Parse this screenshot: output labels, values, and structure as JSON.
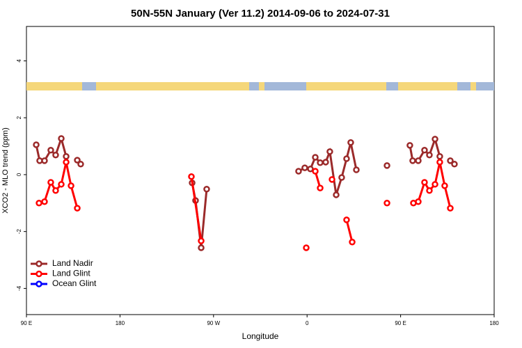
{
  "chart_data": {
    "type": "line",
    "title": "50N-55N January (Ver 11.2)   2014-09-06 to 2024-07-31",
    "x_label": "Longitude",
    "y_label": "XCO2 - MLO trend (ppm)",
    "xlim": [
      90,
      540
    ],
    "xticks": [
      {
        "value": 90,
        "label": "90 E"
      },
      180,
      {
        "value": 270,
        "label": "90 W"
      },
      {
        "value": 360,
        "label": "0"
      },
      {
        "value": 450,
        "label": "90 E"
      },
      {
        "value": 540,
        "label": "180"
      }
    ],
    "ylim": [
      -4.92,
      5.21
    ],
    "yticks": [
      -4,
      -2,
      0,
      2,
      4
    ],
    "legend": "bottom-left",
    "series": [
      {
        "name": "Land Nadir",
        "color": "#9b2a2a",
        "x": [
          99.4,
          102.7,
          107.4,
          113.4,
          118.1,
          123.5,
          128.2,
          null,
          138.9,
          142.2,
          null,
          249.4,
          252.7,
          258.1,
          263.4,
          null,
          351.8,
          357.8,
          363.2,
          367.9,
          372.6,
          377.9,
          381.9,
          388.0,
          393.3,
          398.0,
          402.0,
          407.4,
          null,
          436.9,
          null,
          458.9,
          461.6,
          467.0,
          473.0,
          477.7,
          483.1,
          487.7,
          null,
          497.8,
          501.8
        ],
        "values": [
          1.05,
          0.49,
          0.49,
          0.86,
          0.69,
          1.27,
          0.64,
          null,
          0.51,
          0.37,
          null,
          -0.29,
          -0.91,
          -2.57,
          -0.51,
          null,
          0.12,
          0.24,
          0.2,
          0.61,
          0.42,
          0.44,
          0.81,
          -0.71,
          -0.1,
          0.56,
          1.13,
          0.17,
          null,
          0.32,
          null,
          1.03,
          0.49,
          0.49,
          0.86,
          0.69,
          1.25,
          0.64,
          null,
          0.49,
          0.37
        ]
      },
      {
        "name": "Land Glint",
        "color": "#ff0000",
        "x": [
          102.1,
          107.4,
          113.4,
          118.1,
          123.5,
          128.2,
          132.9,
          138.9,
          null,
          248.7,
          258.1,
          null,
          359.2,
          null,
          367.9,
          372.6,
          null,
          384.0,
          null,
          398.0,
          403.4,
          null,
          436.9,
          null,
          462.3,
          467.0,
          473.0,
          477.7,
          483.1,
          487.7,
          492.4,
          497.8
        ],
        "values": [
          -1.0,
          -0.95,
          -0.27,
          -0.56,
          -0.34,
          0.44,
          -0.39,
          -1.18,
          null,
          -0.07,
          -2.33,
          null,
          -2.57,
          null,
          0.12,
          -0.47,
          null,
          -0.17,
          null,
          -1.59,
          -2.37,
          null,
          -1.0,
          null,
          -1.0,
          -0.95,
          -0.27,
          -0.56,
          -0.34,
          0.44,
          -0.39,
          -1.18
        ]
      },
      {
        "name": "Ocean Glint",
        "color": "#0000ff",
        "x": [],
        "values": []
      }
    ]
  }
}
